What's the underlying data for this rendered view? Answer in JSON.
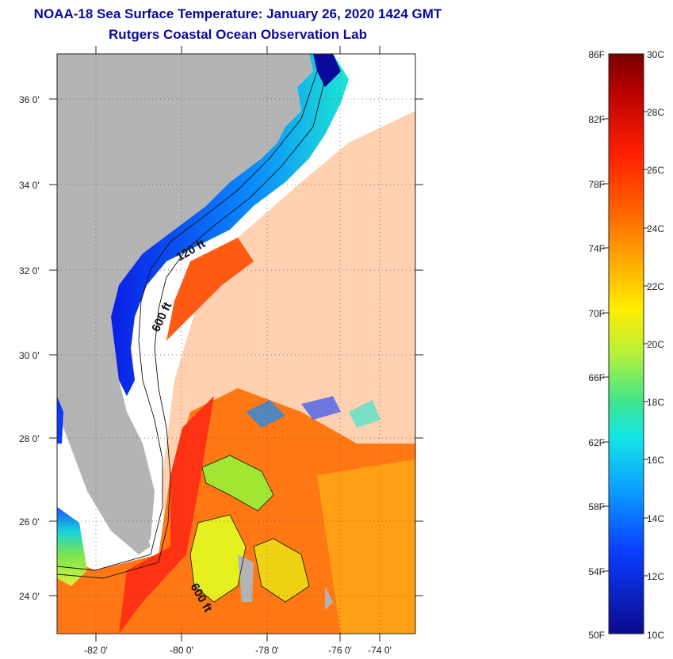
{
  "title": {
    "line1": "NOAA-18 Sea Surface Temperature:  January 26, 2020 1424 GMT",
    "line2": "Rutgers Coastal Ocean Observation Lab"
  },
  "map": {
    "lat_ticks": [
      "36 0'",
      "34 0'",
      "32 0'",
      "30 0'",
      "28 0'",
      "26 0'",
      "24 0'"
    ],
    "lon_ticks": [
      "-82 0'",
      "-80 0'",
      "-78 0'",
      "-76 0'",
      "-74 0'"
    ],
    "contour_labels": [
      "120 ft",
      "600 ft",
      "600 ft"
    ],
    "land_color": "#b4b4b4",
    "cloud_color": "#ffffff"
  },
  "colorbar": {
    "f_labels": [
      "86F",
      "82F",
      "78F",
      "74F",
      "70F",
      "66F",
      "62F",
      "58F",
      "54F",
      "50F"
    ],
    "c_labels": [
      "30C",
      "28C",
      "26C",
      "24C",
      "22C",
      "20C",
      "18C",
      "16C",
      "14C",
      "12C",
      "10C"
    ],
    "colors": [
      "#7a0000",
      "#c80000",
      "#ff2a00",
      "#ff7a00",
      "#ffc800",
      "#e6ff1a",
      "#8cf04a",
      "#1ee6d2",
      "#0aa0ff",
      "#0a3cff",
      "#0a0a9a"
    ]
  }
}
